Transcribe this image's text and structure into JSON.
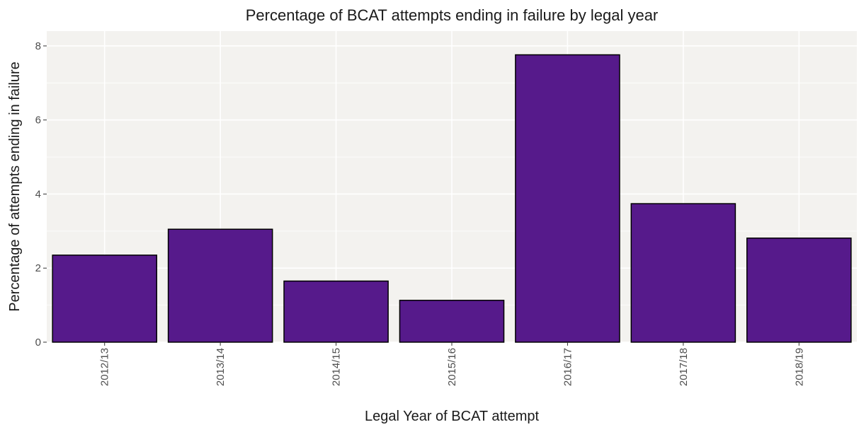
{
  "chart_data": {
    "type": "bar",
    "title": "Percentage of BCAT attempts ending in failure by legal year",
    "xlabel": "Legal Year of BCAT attempt",
    "ylabel": "Percentage of attempts ending in failure",
    "categories": [
      "2012/13",
      "2013/14",
      "2014/15",
      "2015/16",
      "2016/17",
      "2017/18",
      "2018/19"
    ],
    "values": [
      2.35,
      3.05,
      1.65,
      1.13,
      7.76,
      3.74,
      2.81
    ],
    "ylim": [
      0,
      8.4
    ],
    "yticks": [
      "0",
      "2",
      "4",
      "6",
      "8"
    ],
    "grid": true,
    "legend": "none",
    "colors": {
      "bar_fill": "#561A8B",
      "bar_stroke": "#000000",
      "panel_background": "#F3F2EF",
      "grid": "#FFFFFF"
    }
  }
}
